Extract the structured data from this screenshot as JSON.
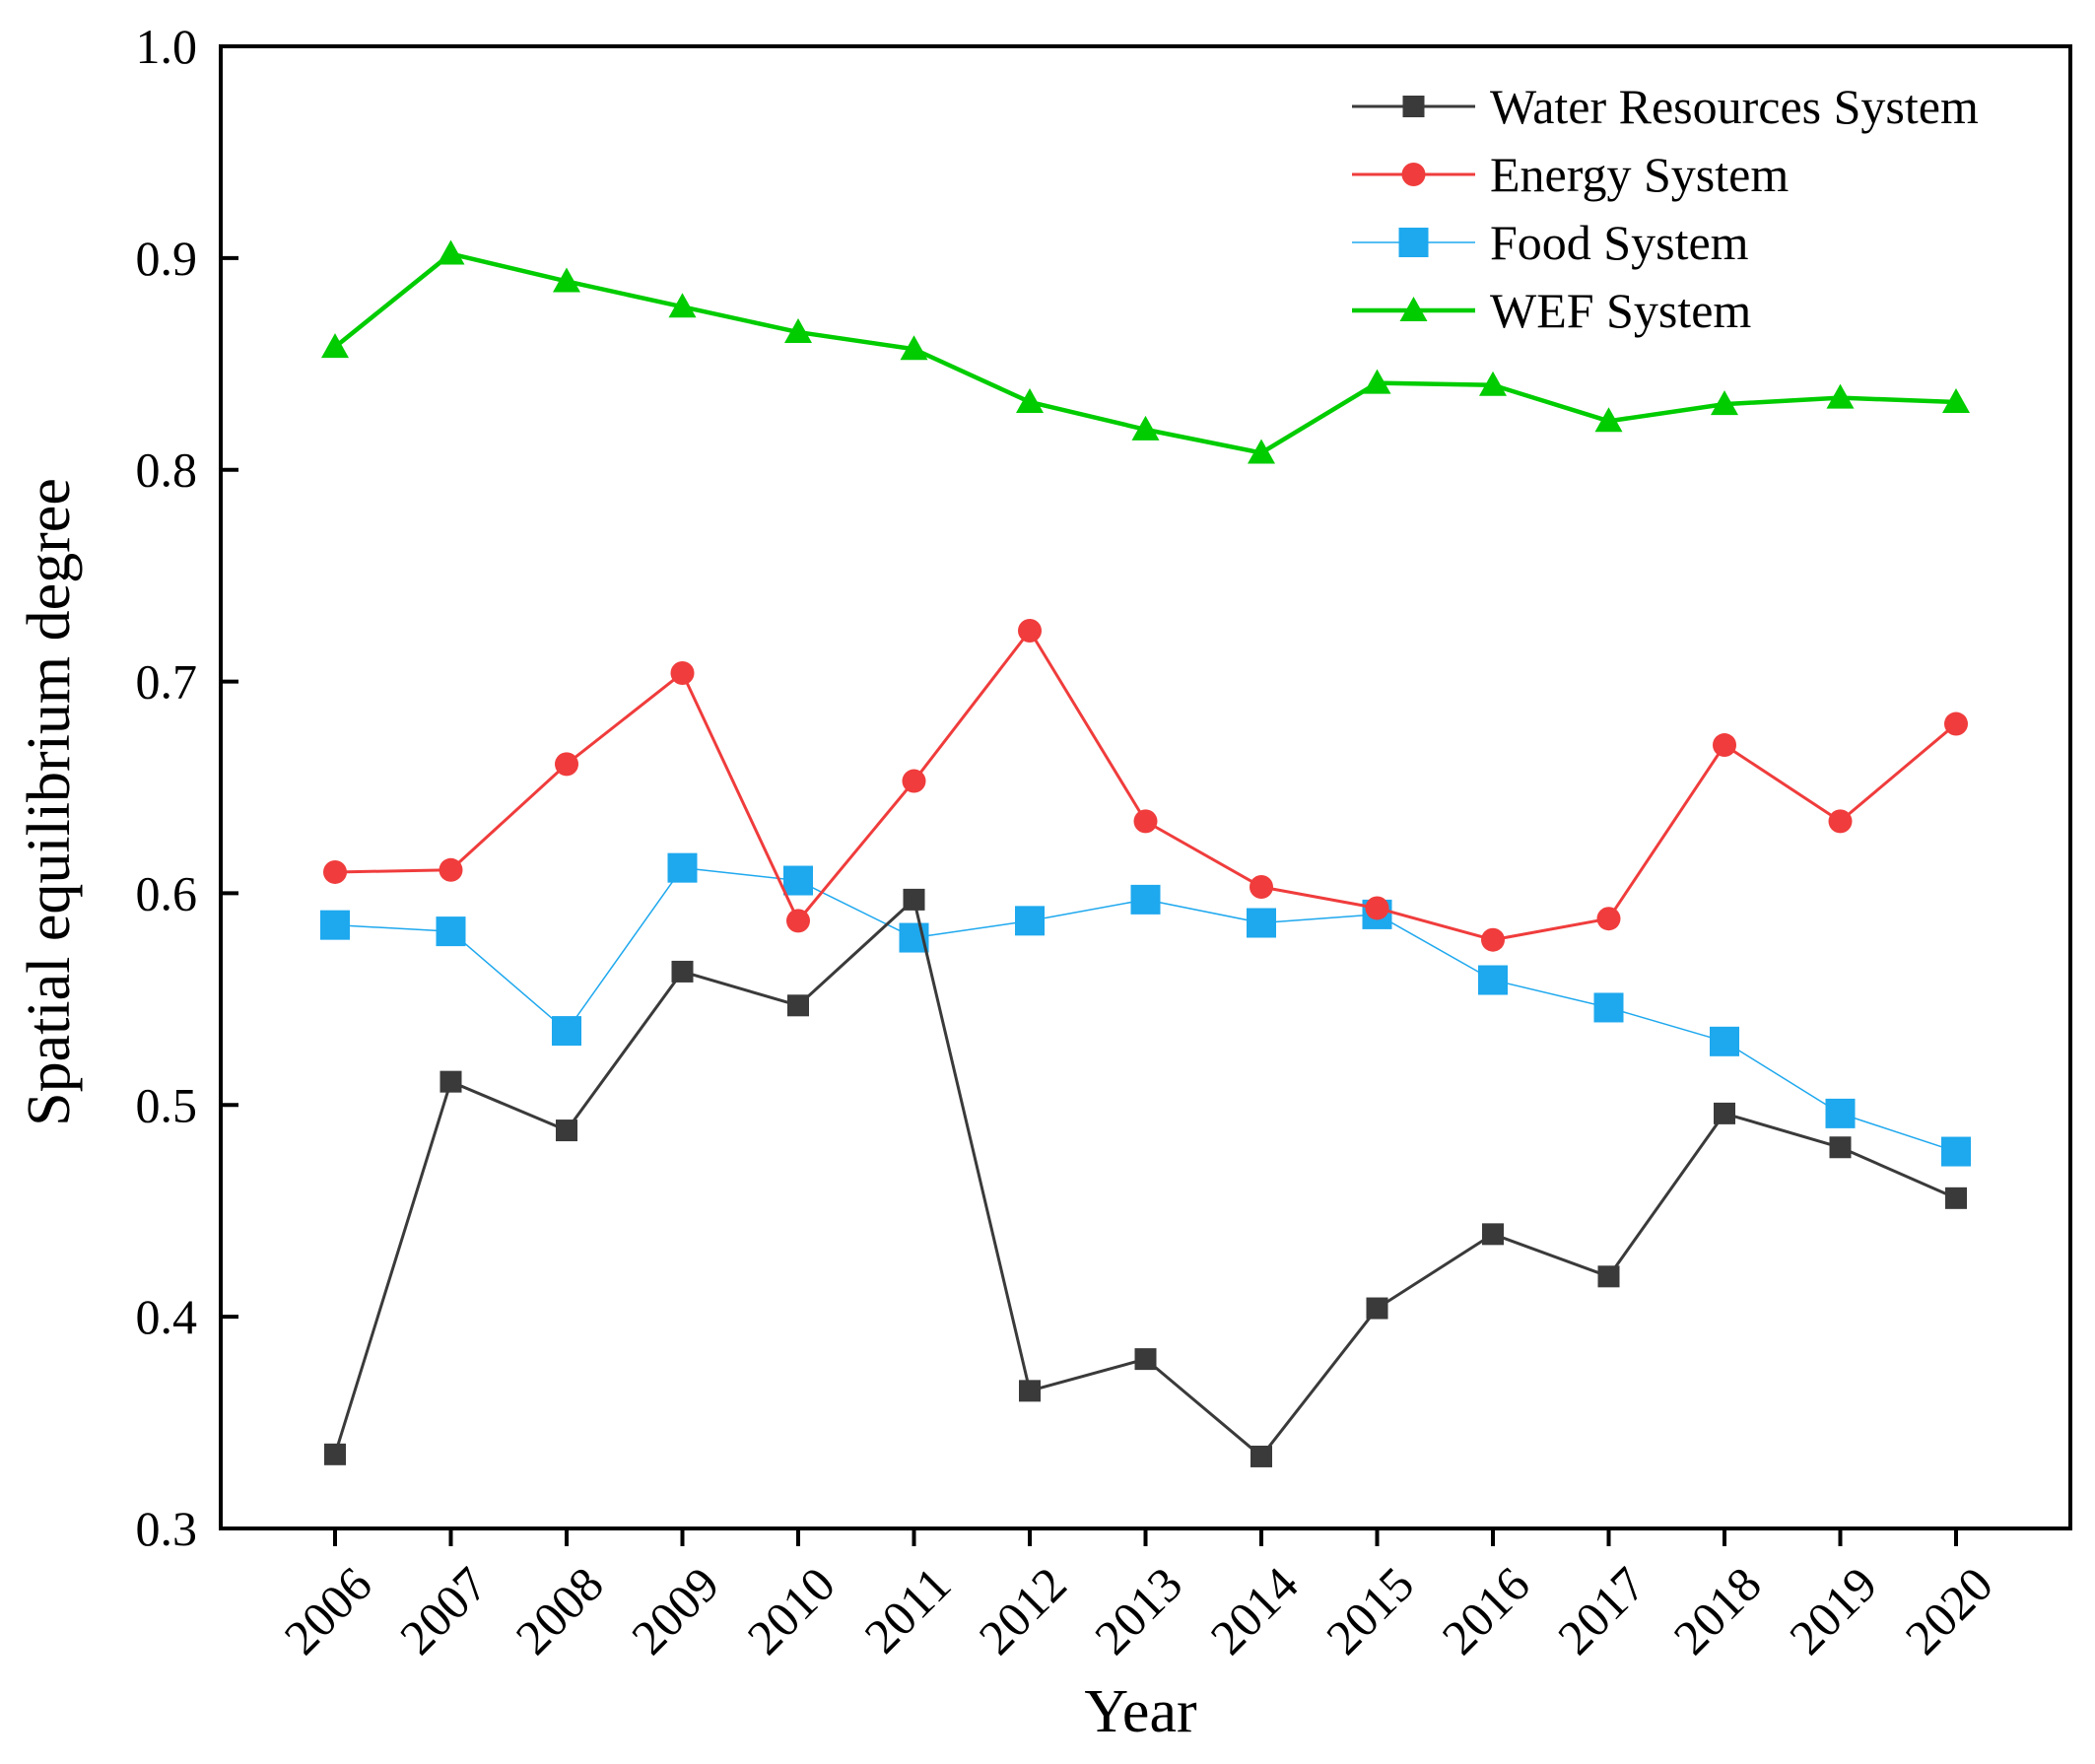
{
  "chart_data": {
    "type": "line",
    "xlabel": "Year",
    "ylabel": "Spatial equilibrium degree",
    "ylim": [
      0.3,
      1.0
    ],
    "yticks": [
      "0.3",
      "0.4",
      "0.5",
      "0.6",
      "0.7",
      "0.8",
      "0.9",
      "1.0"
    ],
    "categories": [
      "2006",
      "2007",
      "2008",
      "2009",
      "2010",
      "2011",
      "2012",
      "2013",
      "2014",
      "2015",
      "2016",
      "2017",
      "2018",
      "2019",
      "2020"
    ],
    "legend_position": "top-right",
    "grid": false,
    "series": [
      {
        "name": "Water Resources System",
        "color": "#3a3a3a",
        "marker": "square-small",
        "values": [
          0.335,
          0.511,
          0.488,
          0.563,
          0.547,
          0.597,
          0.365,
          0.38,
          0.334,
          0.404,
          0.439,
          0.419,
          0.496,
          0.48,
          0.456
        ]
      },
      {
        "name": "Energy System",
        "color": "#f03c3c",
        "marker": "circle",
        "values": [
          0.61,
          0.611,
          0.661,
          0.704,
          0.587,
          0.653,
          0.724,
          0.634,
          0.603,
          0.593,
          0.578,
          0.588,
          0.67,
          0.634,
          0.68
        ]
      },
      {
        "name": "Food System",
        "color": "#1ea8ee",
        "marker": "square-large",
        "values": [
          0.585,
          0.582,
          0.535,
          0.612,
          0.606,
          0.579,
          0.587,
          0.597,
          0.586,
          0.59,
          0.559,
          0.546,
          0.53,
          0.496,
          0.478
        ]
      },
      {
        "name": "WEF System",
        "color": "#00cc00",
        "marker": "triangle",
        "values": [
          0.858,
          0.902,
          0.889,
          0.877,
          0.865,
          0.857,
          0.832,
          0.819,
          0.808,
          0.841,
          0.84,
          0.823,
          0.831,
          0.834,
          0.832
        ]
      }
    ]
  }
}
